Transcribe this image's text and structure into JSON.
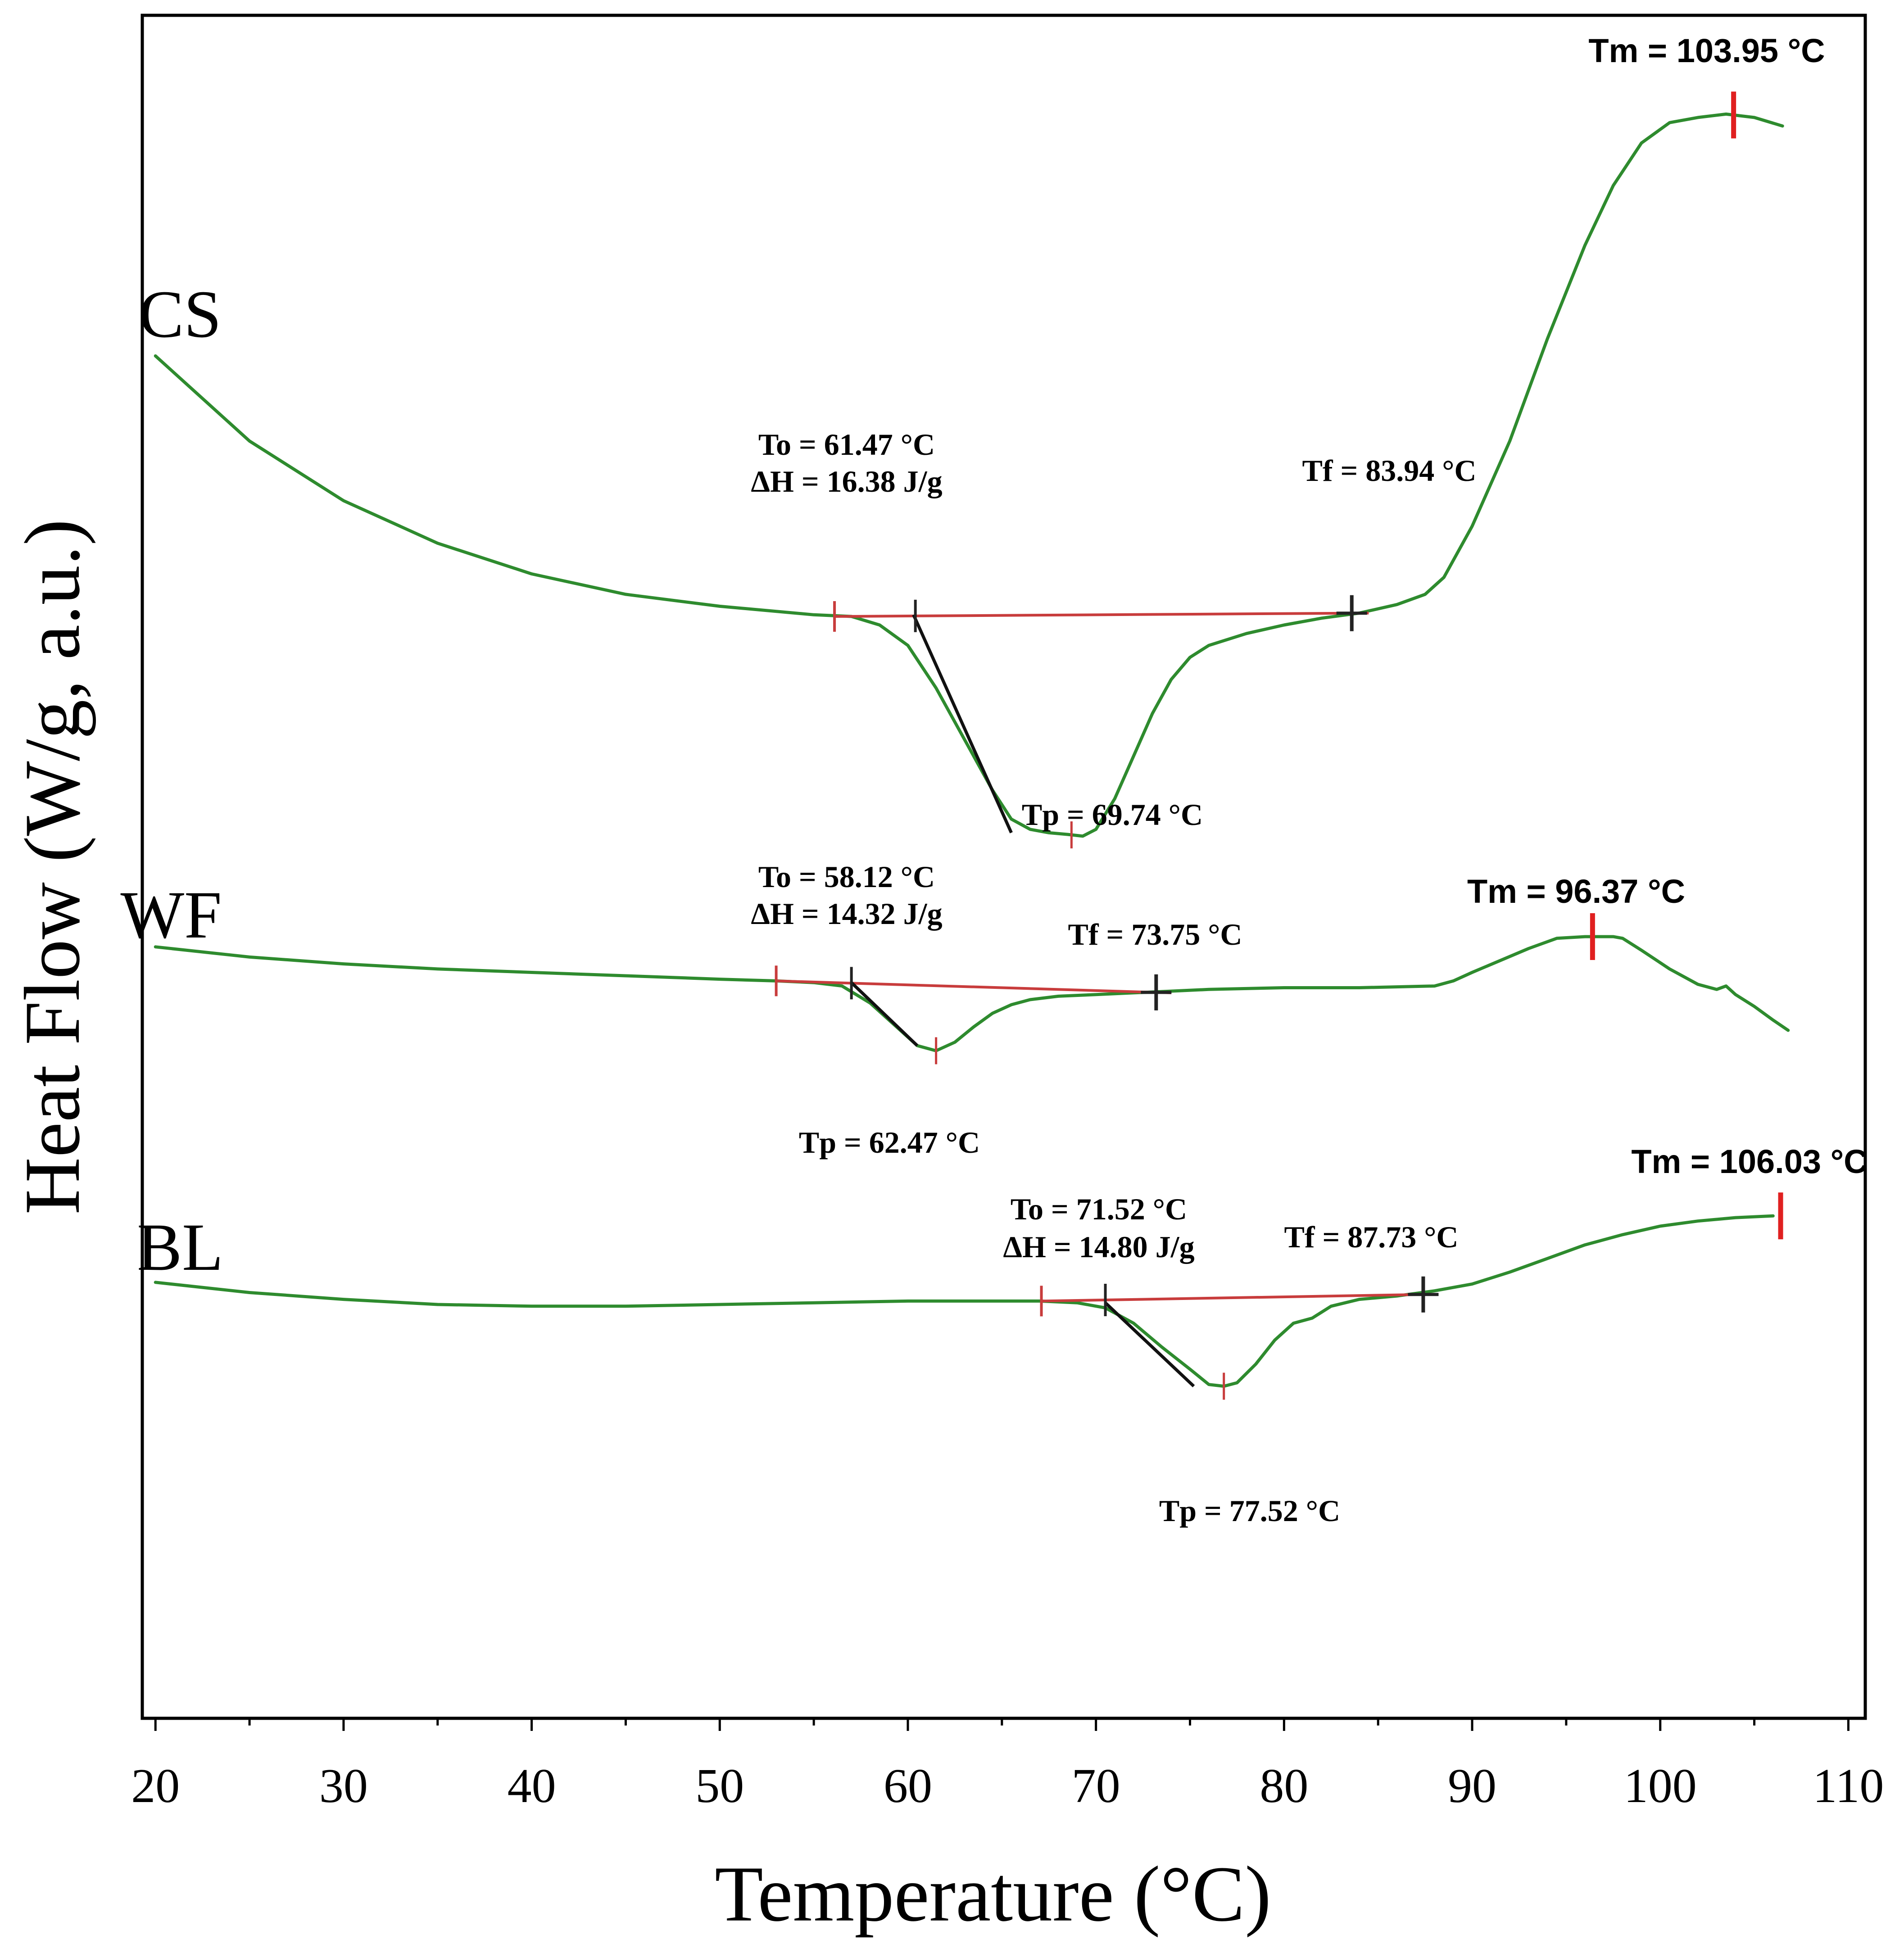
{
  "chart_data": {
    "type": "line",
    "xlabel": "Temperature (°C)",
    "ylabel": "Heat Flow (W/g, a.u.)",
    "xlim": [
      19.3,
      110.9
    ],
    "ylim": [
      0,
      1
    ],
    "x_ticks": [
      20,
      30,
      40,
      50,
      60,
      70,
      80,
      90,
      100,
      110
    ],
    "y_ticks_shown": false,
    "series": [
      {
        "name": "CS",
        "color": "#2e8b2e",
        "points": [
          [
            20,
            0.8
          ],
          [
            25,
            0.75
          ],
          [
            30,
            0.715
          ],
          [
            35,
            0.69
          ],
          [
            40,
            0.672
          ],
          [
            45,
            0.66
          ],
          [
            50,
            0.653
          ],
          [
            55,
            0.648
          ],
          [
            57,
            0.647
          ],
          [
            58.5,
            0.642
          ],
          [
            60,
            0.63
          ],
          [
            61.5,
            0.605
          ],
          [
            63,
            0.575
          ],
          [
            64.5,
            0.545
          ],
          [
            65.5,
            0.528
          ],
          [
            66.5,
            0.522
          ],
          [
            67.5,
            0.52
          ],
          [
            68.5,
            0.519
          ],
          [
            69.3,
            0.518
          ],
          [
            70,
            0.522
          ],
          [
            71,
            0.54
          ],
          [
            72,
            0.565
          ],
          [
            73,
            0.59
          ],
          [
            74,
            0.61
          ],
          [
            75,
            0.623
          ],
          [
            76,
            0.63
          ],
          [
            78,
            0.637
          ],
          [
            80,
            0.642
          ],
          [
            82,
            0.646
          ],
          [
            84,
            0.649
          ],
          [
            86,
            0.654
          ],
          [
            87.5,
            0.66
          ],
          [
            88.5,
            0.67
          ],
          [
            90,
            0.7
          ],
          [
            92,
            0.75
          ],
          [
            94,
            0.81
          ],
          [
            96,
            0.865
          ],
          [
            97.5,
            0.9
          ],
          [
            99,
            0.925
          ],
          [
            100.5,
            0.937
          ],
          [
            102,
            0.94
          ],
          [
            103.5,
            0.942
          ],
          [
            105,
            0.94
          ],
          [
            106.5,
            0.935
          ]
        ],
        "annotations": {
          "to": "To = 61.47 °C",
          "dh": "ΔH = 16.38 J/g",
          "tf": "Tf = 83.94 °C",
          "tp": "Tp = 69.74 °C",
          "tm": "Tm = 103.95 °C"
        },
        "markers": {
          "baseline_start": 56.1,
          "onset": 60.4,
          "end": 83.6,
          "peak": 68.7,
          "tm": 103.9
        },
        "baseline": [
          [
            56.1,
            0.647
          ],
          [
            84.5,
            0.649
          ]
        ],
        "tangent": [
          [
            60.3,
            0.648
          ],
          [
            65.5,
            0.52
          ]
        ]
      },
      {
        "name": "WF",
        "color": "#2e8b2e",
        "points": [
          [
            20,
            0.453
          ],
          [
            25,
            0.447
          ],
          [
            30,
            0.443
          ],
          [
            35,
            0.44
          ],
          [
            40,
            0.438
          ],
          [
            45,
            0.436
          ],
          [
            50,
            0.434
          ],
          [
            53,
            0.433
          ],
          [
            55,
            0.432
          ],
          [
            56.5,
            0.43
          ],
          [
            58,
            0.42
          ],
          [
            59.5,
            0.405
          ],
          [
            60.5,
            0.395
          ],
          [
            61.5,
            0.392
          ],
          [
            62.5,
            0.397
          ],
          [
            63.5,
            0.406
          ],
          [
            64.5,
            0.414
          ],
          [
            65.5,
            0.419
          ],
          [
            66.5,
            0.422
          ],
          [
            68,
            0.424
          ],
          [
            70,
            0.425
          ],
          [
            72,
            0.426
          ],
          [
            74,
            0.427
          ],
          [
            76,
            0.428
          ],
          [
            80,
            0.429
          ],
          [
            84,
            0.429
          ],
          [
            88,
            0.43
          ],
          [
            89,
            0.433
          ],
          [
            90,
            0.438
          ],
          [
            91.5,
            0.445
          ],
          [
            93,
            0.452
          ],
          [
            94.5,
            0.458
          ],
          [
            96,
            0.459
          ],
          [
            97.5,
            0.459
          ],
          [
            98,
            0.458
          ],
          [
            99,
            0.451
          ],
          [
            100.5,
            0.44
          ],
          [
            102,
            0.431
          ],
          [
            103,
            0.428
          ],
          [
            103.5,
            0.43
          ],
          [
            104,
            0.425
          ],
          [
            105,
            0.418
          ],
          [
            106,
            0.41
          ],
          [
            106.8,
            0.404
          ]
        ],
        "annotations": {
          "to": "To = 58.12 °C",
          "dh": "ΔH = 14.32 J/g",
          "tf": "Tf = 73.75 °C",
          "tp": "Tp = 62.47 °C",
          "tm": "Tm = 96.37 °C"
        },
        "markers": {
          "baseline_start": 53.0,
          "onset": 57.0,
          "end": 73.2,
          "peak": 61.5,
          "tm": 96.4
        },
        "baseline": [
          [
            53.0,
            0.433
          ],
          [
            74.0,
            0.426
          ]
        ],
        "tangent": [
          [
            57.0,
            0.432
          ],
          [
            60.5,
            0.395
          ]
        ]
      },
      {
        "name": "BL",
        "color": "#2e8b2e",
        "points": [
          [
            20,
            0.256
          ],
          [
            25,
            0.25
          ],
          [
            30,
            0.246
          ],
          [
            35,
            0.243
          ],
          [
            40,
            0.242
          ],
          [
            45,
            0.242
          ],
          [
            50,
            0.243
          ],
          [
            55,
            0.244
          ],
          [
            60,
            0.245
          ],
          [
            65,
            0.245
          ],
          [
            67,
            0.245
          ],
          [
            69,
            0.244
          ],
          [
            70.5,
            0.241
          ],
          [
            72,
            0.232
          ],
          [
            73.5,
            0.218
          ],
          [
            75,
            0.205
          ],
          [
            76,
            0.196
          ],
          [
            76.8,
            0.195
          ],
          [
            77.5,
            0.197
          ],
          [
            78.5,
            0.208
          ],
          [
            79.5,
            0.222
          ],
          [
            80.5,
            0.232
          ],
          [
            81.5,
            0.235
          ],
          [
            82.5,
            0.242
          ],
          [
            84,
            0.246
          ],
          [
            86,
            0.248
          ],
          [
            88,
            0.251
          ],
          [
            90,
            0.255
          ],
          [
            92,
            0.262
          ],
          [
            94,
            0.27
          ],
          [
            96,
            0.278
          ],
          [
            98,
            0.284
          ],
          [
            100,
            0.289
          ],
          [
            102,
            0.292
          ],
          [
            104,
            0.294
          ],
          [
            106,
            0.295
          ]
        ],
        "annotations": {
          "to": "To = 71.52 °C",
          "dh": "ΔH = 14.80 J/g",
          "tf": "Tf = 87.73 °C",
          "tp": "Tp = 77.52 °C",
          "tm": "Tm = 106.03 °C"
        },
        "markers": {
          "baseline_start": 67.1,
          "onset": 70.5,
          "end": 87.4,
          "peak": 76.8,
          "tm": 106.4
        },
        "baseline": [
          [
            67.1,
            0.245
          ],
          [
            88.0,
            0.249
          ]
        ],
        "tangent": [
          [
            70.5,
            0.244
          ],
          [
            75.2,
            0.195
          ]
        ]
      }
    ]
  },
  "colors": {
    "curve": "#2e8b2e",
    "baseline": "#c83c3c",
    "tangent": "#111111",
    "marker_red": "#e02020",
    "marker_dark": "#222222",
    "axis": "#000000"
  }
}
